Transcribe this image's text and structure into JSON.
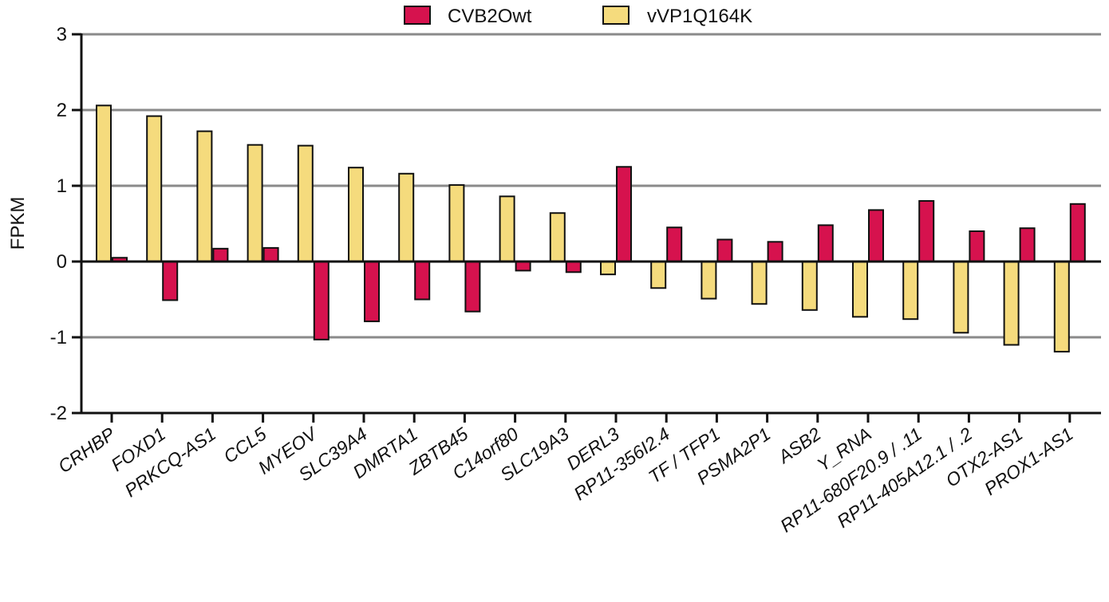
{
  "chart_data": {
    "type": "bar",
    "ylabel": "FPKM",
    "ylim": [
      -2,
      3
    ],
    "yticks": [
      -2,
      -1,
      0,
      1,
      2,
      3
    ],
    "grid": true,
    "legend_position": "top-center",
    "categories": [
      "CRHBP",
      "FOXD1",
      "PRKCQ-AS1",
      "CCL5",
      "MYEOV",
      "SLC39A4",
      "DMRTA1",
      "ZBTB45",
      "C14orf80",
      "SLC19A3",
      "DERL3",
      "RP11-356I2.4",
      "TF / TFP1",
      "PSMA2P1",
      "ASB2",
      "Y_RNA",
      "RP11-680F20.9 / .11",
      "RP11-405A12.1 / .2",
      "OTX2-AS1",
      "PROX1-AS1"
    ],
    "series": [
      {
        "name": "vVP1Q164K",
        "color": "#f5db7d",
        "values": [
          2.06,
          1.92,
          1.72,
          1.54,
          1.53,
          1.24,
          1.16,
          1.01,
          0.86,
          0.64,
          -0.17,
          -0.35,
          -0.49,
          -0.56,
          -0.64,
          -0.73,
          -0.76,
          -0.94,
          -1.1,
          -1.19
        ]
      },
      {
        "name": "CVB2Owt",
        "color": "#d6124e",
        "values": [
          0.05,
          -0.51,
          0.17,
          0.18,
          -1.03,
          -0.79,
          -0.5,
          -0.66,
          -0.12,
          -0.14,
          1.25,
          0.45,
          0.29,
          0.26,
          0.48,
          0.68,
          0.8,
          0.4,
          0.44,
          0.76
        ]
      }
    ]
  }
}
